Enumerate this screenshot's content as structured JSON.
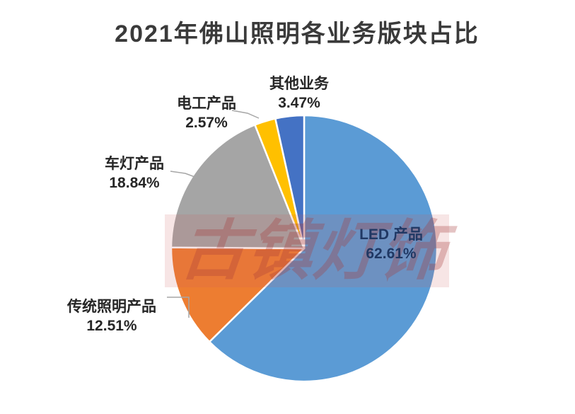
{
  "title": "2021年佛山照明各业务版块占比",
  "watermark": {
    "text": "古镇灯饰",
    "band_color": "#cd5f5f",
    "text_color": "#a53737"
  },
  "colors": {
    "background": "#ffffff",
    "title_text": "#3a3a3a",
    "label_text": "#262626",
    "led_label_text": "#203864",
    "leader_line": "#a6a6a6",
    "slice_border": "#ffffff"
  },
  "chart_data": {
    "type": "pie",
    "title": "2021年佛山照明各业务版块占比",
    "start_angle_deg": 0,
    "direction": "clockwise",
    "legend": "none",
    "slices": [
      {
        "label": "LED 产品",
        "value": 62.61,
        "pct_text": "62.61%",
        "color": "#5B9BD5",
        "label_position": "inside"
      },
      {
        "label": "传统照明产品",
        "value": 12.51,
        "pct_text": "12.51%",
        "color": "#ED7D31",
        "label_position": "outside"
      },
      {
        "label": "车灯产品",
        "value": 18.84,
        "pct_text": "18.84%",
        "color": "#A5A5A5",
        "label_position": "outside"
      },
      {
        "label": "电工产品",
        "value": 2.57,
        "pct_text": "2.57%",
        "color": "#FFC000",
        "label_position": "outside"
      },
      {
        "label": "其他业务",
        "value": 3.47,
        "pct_text": "3.47%",
        "color": "#4472C4",
        "label_position": "outside"
      }
    ]
  }
}
